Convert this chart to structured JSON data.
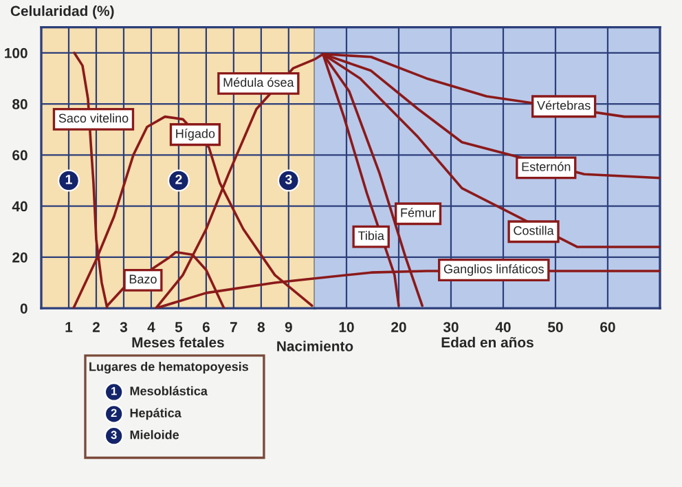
{
  "chart_data": [
    {
      "type": "line",
      "ylabel": "Celularidad (%)",
      "xlabel": "Meses fetales",
      "xlim": [
        0,
        9.95
      ],
      "ylim": [
        0,
        110
      ],
      "xticks": [
        1,
        2,
        3,
        4,
        5,
        6,
        7,
        8,
        9
      ],
      "yticks": [
        0,
        20,
        40,
        60,
        80,
        100
      ],
      "grid": true,
      "line_style": "solid",
      "marker": "none",
      "bands": [
        {
          "axis": "x",
          "from": 0,
          "to": 9.95,
          "color": "#f6dfb0"
        }
      ],
      "series": [
        {
          "name": "Saco vitelino",
          "color": "#8b1a1a",
          "x": [
            1.2,
            1.5,
            1.7,
            1.8,
            1.9,
            2.0,
            2.2,
            2.4
          ],
          "values": [
            100,
            95,
            82,
            65,
            49,
            27,
            10,
            0
          ]
        },
        {
          "name": "Hígado",
          "color": "#8b1a1a",
          "x": [
            1.17,
            2.0,
            2.65,
            3.35,
            3.85,
            4.5,
            5.15,
            6.1,
            6.5,
            7.35,
            8.5,
            9.85
          ],
          "values": [
            0,
            19,
            36,
            60,
            71,
            75,
            74,
            63,
            49,
            31,
            13,
            1
          ]
        },
        {
          "name": "Bazo",
          "color": "#8b1a1a",
          "x": [
            2.4,
            3.0,
            4.67,
            4.9,
            5.5,
            6.0,
            6.65
          ],
          "values": [
            1,
            8,
            20,
            22,
            21,
            15,
            0
          ]
        },
        {
          "name": "Médula ósea",
          "color": "#8b1a1a",
          "x": [
            4.17,
            5.15,
            6.0,
            6.83,
            7.83,
            9.17,
            9.95
          ],
          "values": [
            0,
            13,
            31,
            53,
            78,
            94,
            97.5
          ]
        },
        {
          "color": "#8b1a1a",
          "x": [
            4.17,
            6.0,
            8.5,
            9.95
          ],
          "values": [
            0,
            6,
            10,
            11.7
          ]
        }
      ],
      "annotations": [
        "1",
        "2",
        "3",
        "Lugares de hematopoyesis",
        "1",
        "Mesoblástica",
        "2",
        "Hepática",
        "3",
        "Mieloide"
      ]
    },
    {
      "type": "line",
      "xlabel": "Edad en años",
      "xlim": [
        3.95,
        70
      ],
      "ylim": [
        0,
        110
      ],
      "xticks": [
        10,
        20,
        30,
        40,
        50,
        60
      ],
      "yticks": [
        0,
        20,
        40,
        60,
        80,
        100
      ],
      "tick_labels": "x",
      "grid": true,
      "line_style": "solid",
      "marker": "none",
      "bands": [
        {
          "axis": "x",
          "from": 3.95,
          "to": 70,
          "color": "#b9c9ea"
        }
      ],
      "series": [
        {
          "color": "#8b1a1a",
          "x": [
            3.95,
            5.5
          ],
          "values": [
            97.5,
            99.5
          ]
        },
        {
          "name": "Vértebras",
          "color": "#8b1a1a",
          "x": [
            5.5,
            14.7,
            25.3,
            36.8,
            63.2,
            70
          ],
          "values": [
            99.5,
            98.4,
            90,
            83,
            75,
            75
          ]
        },
        {
          "name": "Esternón",
          "color": "#8b1a1a",
          "x": [
            5.5,
            14.7,
            23.7,
            32.1,
            55.5,
            70
          ],
          "values": [
            99.5,
            93,
            78,
            65,
            52.5,
            51
          ]
        },
        {
          "name": "Costilla",
          "color": "#8b1a1a",
          "x": [
            5.5,
            12.6,
            23.7,
            32.1,
            54.2,
            70
          ],
          "values": [
            99.5,
            90,
            67,
            47,
            24,
            24
          ]
        },
        {
          "name": "Fémur",
          "color": "#8b1a1a",
          "x": [
            5.5,
            10.5,
            16.3,
            21.3,
            24.5
          ],
          "values": [
            99.5,
            85,
            53,
            20,
            1
          ]
        },
        {
          "name": "Tibia",
          "color": "#8b1a1a",
          "x": [
            5.5,
            9.5,
            13.9,
            19.2,
            20
          ],
          "values": [
            99.5,
            75,
            45,
            13,
            1
          ]
        },
        {
          "name": "Ganglios linfáticos",
          "color": "#8b1a1a",
          "x": [
            3.95,
            14.7,
            25.3,
            54.2,
            70
          ],
          "values": [
            11.7,
            14,
            14.6,
            14.6,
            14.6
          ]
        }
      ],
      "annotations": [
        "Nacimiento"
      ]
    }
  ]
}
